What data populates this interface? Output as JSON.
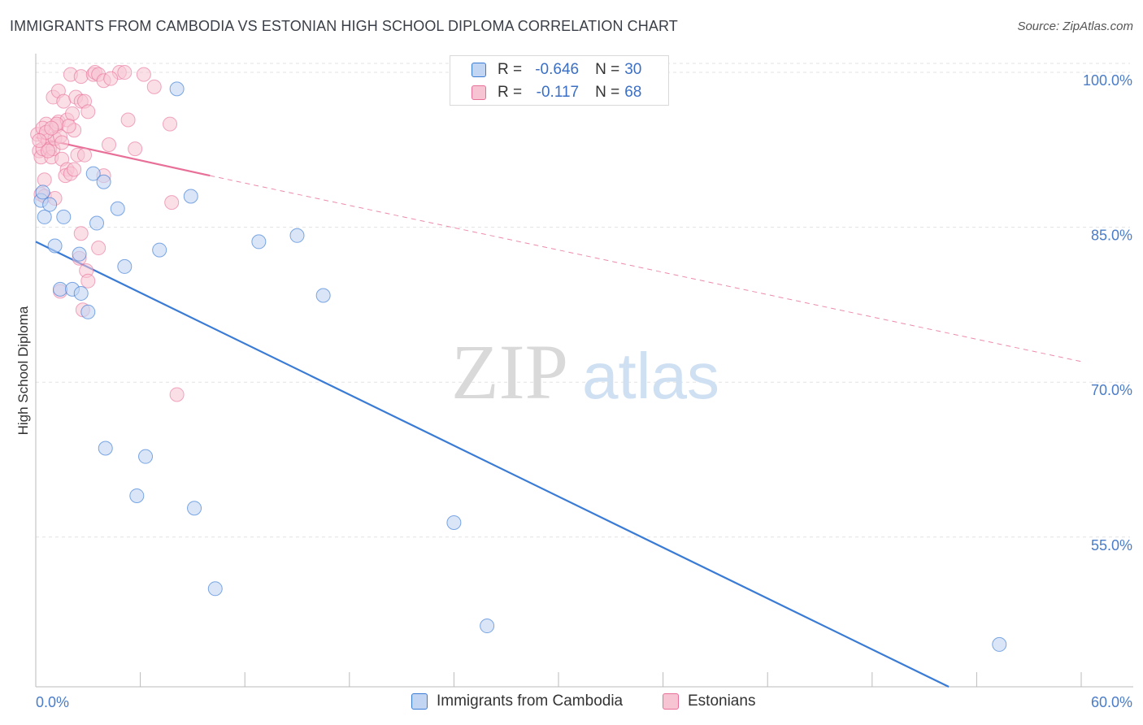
{
  "title": "IMMIGRANTS FROM CAMBODIA VS ESTONIAN HIGH SCHOOL DIPLOMA CORRELATION CHART",
  "source": "Source: ZipAtlas.com",
  "watermark": {
    "zip": "ZIP",
    "atlas": "atlas"
  },
  "colors": {
    "blue": "#3a7bd5",
    "blue_fill": "#c2d6f4",
    "pink": "#e86f97",
    "pink_fill": "#f7c4d4",
    "tick": "#4a7cc8"
  },
  "legend": {
    "rows": [
      {
        "r_label": "R =",
        "r_value": "-0.646",
        "n_label": "N =",
        "n_value": "30"
      },
      {
        "r_label": "R =",
        "r_value": "-0.117",
        "n_label": "N =",
        "n_value": "68"
      }
    ]
  },
  "chart_data": {
    "type": "scatter",
    "title": "IMMIGRANTS FROM CAMBODIA VS ESTONIAN HIGH SCHOOL DIPLOMA CORRELATION CHART",
    "xlabel": "",
    "ylabel": "High School Diploma",
    "xlim": [
      0,
      60
    ],
    "ylim": [
      40.5,
      101.5
    ],
    "x_tick_labels": [
      "0.0%",
      "60.0%"
    ],
    "y_ticks": [
      55,
      70,
      85,
      100
    ],
    "y_tick_labels": [
      "55.0%",
      "70.0%",
      "85.0%",
      "100.0%"
    ],
    "grid": true,
    "series": [
      {
        "name": "Immigrants from Cambodia",
        "color": "blue",
        "points": [
          [
            0.3,
            87.6
          ],
          [
            0.5,
            86.0
          ],
          [
            0.8,
            87.2
          ],
          [
            1.1,
            83.2
          ],
          [
            1.6,
            86.0
          ],
          [
            1.4,
            79.0
          ],
          [
            2.1,
            79.0
          ],
          [
            2.5,
            82.4
          ],
          [
            2.6,
            78.6
          ],
          [
            3.0,
            76.8
          ],
          [
            3.3,
            90.2
          ],
          [
            3.5,
            85.4
          ],
          [
            3.9,
            89.4
          ],
          [
            4.7,
            86.8
          ],
          [
            5.1,
            81.2
          ],
          [
            7.1,
            82.8
          ],
          [
            8.1,
            98.4
          ],
          [
            8.9,
            88.0
          ],
          [
            12.8,
            83.6
          ],
          [
            15.0,
            84.2
          ],
          [
            16.5,
            78.4
          ],
          [
            4.0,
            63.6
          ],
          [
            6.3,
            62.8
          ],
          [
            5.8,
            59.0
          ],
          [
            9.1,
            57.8
          ],
          [
            10.3,
            50.0
          ],
          [
            24.0,
            56.4
          ],
          [
            25.9,
            46.4
          ],
          [
            55.3,
            44.6
          ],
          [
            0.4,
            88.4
          ]
        ],
        "trendline": {
          "x": [
            0,
            52.4
          ],
          "y": [
            83.6,
            40.5
          ],
          "dashed_extension": false
        }
      },
      {
        "name": "Estonians",
        "color": "pink",
        "points": [
          [
            0.1,
            94.0
          ],
          [
            0.2,
            92.4
          ],
          [
            0.3,
            91.8
          ],
          [
            0.4,
            92.6
          ],
          [
            0.5,
            93.8
          ],
          [
            0.6,
            95.0
          ],
          [
            0.7,
            93.4
          ],
          [
            0.8,
            92.6
          ],
          [
            0.9,
            91.8
          ],
          [
            1.0,
            92.6
          ],
          [
            1.1,
            93.6
          ],
          [
            1.2,
            94.8
          ],
          [
            1.3,
            95.2
          ],
          [
            1.4,
            93.8
          ],
          [
            1.5,
            91.6
          ],
          [
            1.0,
            97.6
          ],
          [
            1.3,
            98.2
          ],
          [
            1.6,
            97.2
          ],
          [
            1.8,
            95.4
          ],
          [
            2.1,
            96.0
          ],
          [
            2.2,
            94.4
          ],
          [
            2.0,
            99.8
          ],
          [
            2.3,
            97.6
          ],
          [
            2.6,
            97.2
          ],
          [
            2.8,
            97.2
          ],
          [
            2.6,
            99.6
          ],
          [
            3.0,
            96.2
          ],
          [
            3.3,
            99.8
          ],
          [
            3.4,
            100.0
          ],
          [
            3.6,
            99.8
          ],
          [
            3.9,
            99.2
          ],
          [
            4.8,
            100.0
          ],
          [
            5.1,
            100.0
          ],
          [
            6.2,
            99.8
          ],
          [
            6.8,
            98.6
          ],
          [
            0.3,
            88.2
          ],
          [
            0.5,
            88.0
          ],
          [
            1.1,
            87.8
          ],
          [
            0.5,
            89.6
          ],
          [
            1.8,
            90.6
          ],
          [
            1.7,
            90.0
          ],
          [
            2.0,
            90.2
          ],
          [
            2.2,
            90.6
          ],
          [
            2.4,
            92.0
          ],
          [
            3.9,
            90.0
          ],
          [
            2.6,
            84.4
          ],
          [
            3.6,
            83.0
          ],
          [
            2.5,
            82.0
          ],
          [
            2.9,
            80.8
          ],
          [
            3.0,
            79.8
          ],
          [
            1.4,
            78.8
          ],
          [
            2.7,
            77.0
          ],
          [
            4.2,
            93.0
          ],
          [
            5.3,
            95.4
          ],
          [
            5.7,
            92.6
          ],
          [
            7.7,
            95.0
          ],
          [
            7.8,
            87.4
          ],
          [
            8.1,
            68.8
          ],
          [
            0.4,
            94.6
          ],
          [
            0.6,
            94.2
          ],
          [
            0.7,
            92.4
          ],
          [
            1.2,
            95.0
          ],
          [
            1.9,
            94.8
          ],
          [
            1.5,
            93.2
          ],
          [
            0.9,
            94.6
          ],
          [
            0.2,
            93.4
          ],
          [
            2.8,
            92.0
          ],
          [
            4.3,
            99.4
          ]
        ],
        "trendline": {
          "x": [
            0,
            10
          ],
          "y": [
            93.7,
            90.0
          ],
          "dashed_to": [
            60,
            72.0
          ]
        }
      }
    ],
    "legend_position": "top-center"
  },
  "bottom_legend": [
    {
      "label": "Immigrants from Cambodia",
      "color": "blue"
    },
    {
      "label": "Estonians",
      "color": "pink"
    }
  ]
}
